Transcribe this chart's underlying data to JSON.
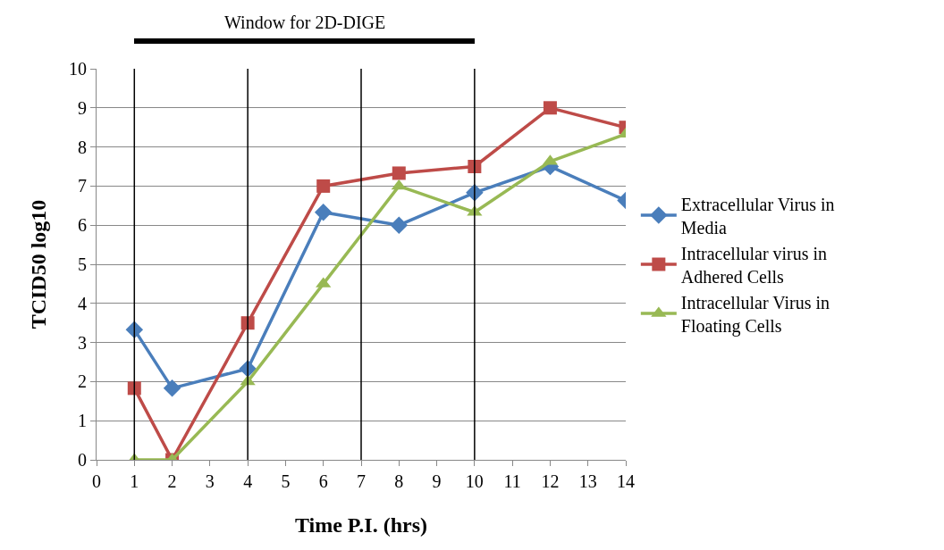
{
  "chart_data": {
    "type": "line",
    "xlabel": "Time P.I. (hrs)",
    "ylabel": "TCID50 log10",
    "xlim": [
      0,
      14
    ],
    "xticks": [
      0,
      1,
      2,
      3,
      4,
      5,
      6,
      7,
      8,
      9,
      10,
      11,
      12,
      13,
      14
    ],
    "ylim": [
      0,
      10
    ],
    "yticks": [
      0,
      1,
      2,
      3,
      4,
      5,
      6,
      7,
      8,
      9,
      10
    ],
    "x": [
      1,
      2,
      4,
      6,
      8,
      10,
      12,
      14
    ],
    "series": [
      {
        "name": "Extracellular Virus in Media",
        "color": "#4a7ebb",
        "marker": "diamond",
        "values": [
          3.33,
          1.83,
          2.33,
          6.33,
          6.0,
          6.83,
          7.5,
          6.63
        ]
      },
      {
        "name": "Intracellular virus in Adhered Cells",
        "color": "#be4b48",
        "marker": "square",
        "values": [
          1.83,
          0,
          3.5,
          7.0,
          7.33,
          7.5,
          9.0,
          8.5
        ]
      },
      {
        "name": "Intracellular Virus in Floating Cells",
        "color": "#98b954",
        "marker": "triangle",
        "values": [
          0,
          0,
          2.0,
          4.5,
          7.0,
          6.33,
          7.63,
          8.33
        ]
      }
    ],
    "ref_lines": [
      {
        "axis": "x",
        "value": 1,
        "color": "#000000"
      },
      {
        "axis": "x",
        "value": 4,
        "color": "#000000"
      },
      {
        "axis": "x",
        "value": 7,
        "color": "#000000"
      },
      {
        "axis": "x",
        "value": 10,
        "color": "#000000"
      }
    ],
    "annotations": [
      "Window for 2D-DIGE"
    ],
    "grid": "y",
    "legend": "right",
    "line_style": "solid"
  }
}
